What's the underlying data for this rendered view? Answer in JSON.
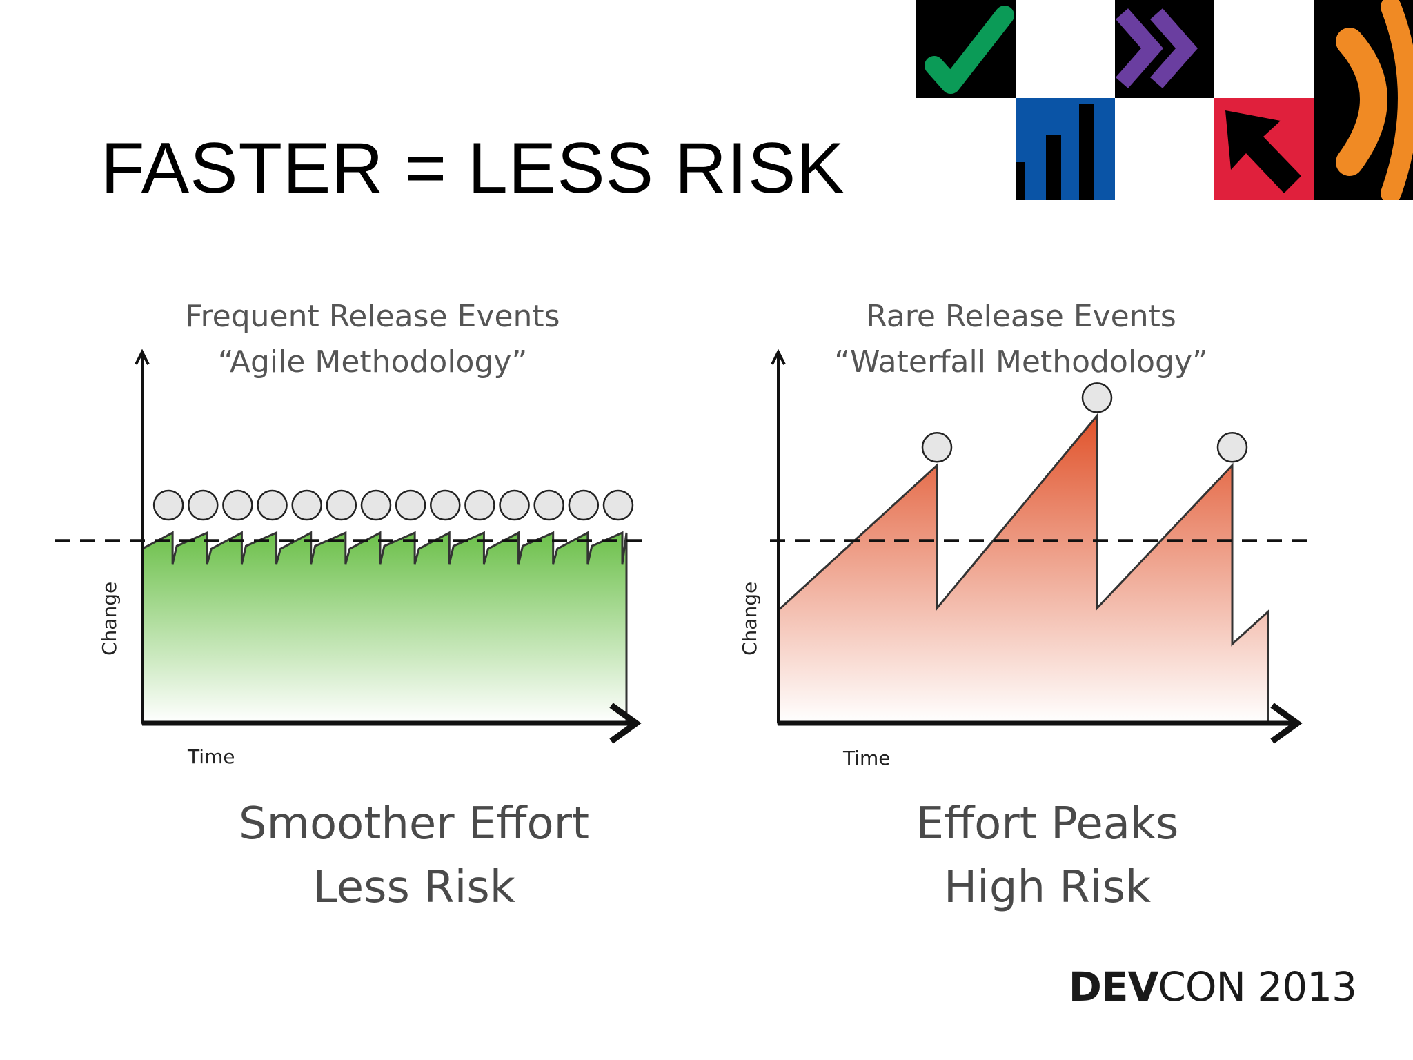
{
  "slide": {
    "title": "FASTER = LESS RISK",
    "footer": {
      "brand_bold": "DEV",
      "brand_light": "CON 2013"
    }
  },
  "colors": {
    "agile_fill_top": "#6cc04a",
    "agile_fill_bottom": "#ffffff",
    "waterfall_fill_top": "#e0522a",
    "waterfall_fill_bottom": "#ffffff",
    "axis": "#111111",
    "release_marker": "#e6e6e6"
  },
  "logo": {
    "tiles": [
      {
        "icon": "checkmark-icon",
        "bg": "#000000",
        "fg": "#0b9b57"
      },
      {
        "icon": "blank-tile",
        "bg": "#ffffff"
      },
      {
        "icon": "double-chevron-icon",
        "bg": "#000000",
        "fg": "#6a3ea0"
      },
      {
        "icon": "blank-tile",
        "bg": "#ffffff"
      },
      {
        "icon": "signal-arc-icon",
        "bg": "#000000",
        "fg": "#f08a24"
      },
      {
        "icon": "bar-chart-icon",
        "bg": "#0a54a6",
        "fg": "#000000"
      },
      {
        "icon": "cursor-arrow-icon",
        "bg": "#e0203c",
        "fg": "#000000"
      }
    ]
  },
  "charts": [
    {
      "id": "agile",
      "heading_line1": "Frequent Release Events",
      "heading_line2": "“Agile Methodology”",
      "xlabel": "Time",
      "ylabel": "Change",
      "caption_line1": "Smoother Effort",
      "caption_line2": "Less Risk",
      "release_count": 14,
      "baseline_level": 0.9,
      "sawtooth": [
        0.9,
        0.96,
        0.9,
        0.96,
        0.9,
        0.96,
        0.9,
        0.96,
        0.9,
        0.96,
        0.9,
        0.96,
        0.9,
        0.96
      ]
    },
    {
      "id": "waterfall",
      "heading_line1": "Rare Release Events",
      "heading_line2": "“Waterfall Methodology”",
      "xlabel": "Time",
      "ylabel": "Change",
      "caption_line1": "Effort Peaks",
      "caption_line2": "High Risk",
      "release_count": 3,
      "baseline_level": 0.9,
      "peaks": [
        1.3,
        1.55,
        1.3
      ]
    }
  ]
}
